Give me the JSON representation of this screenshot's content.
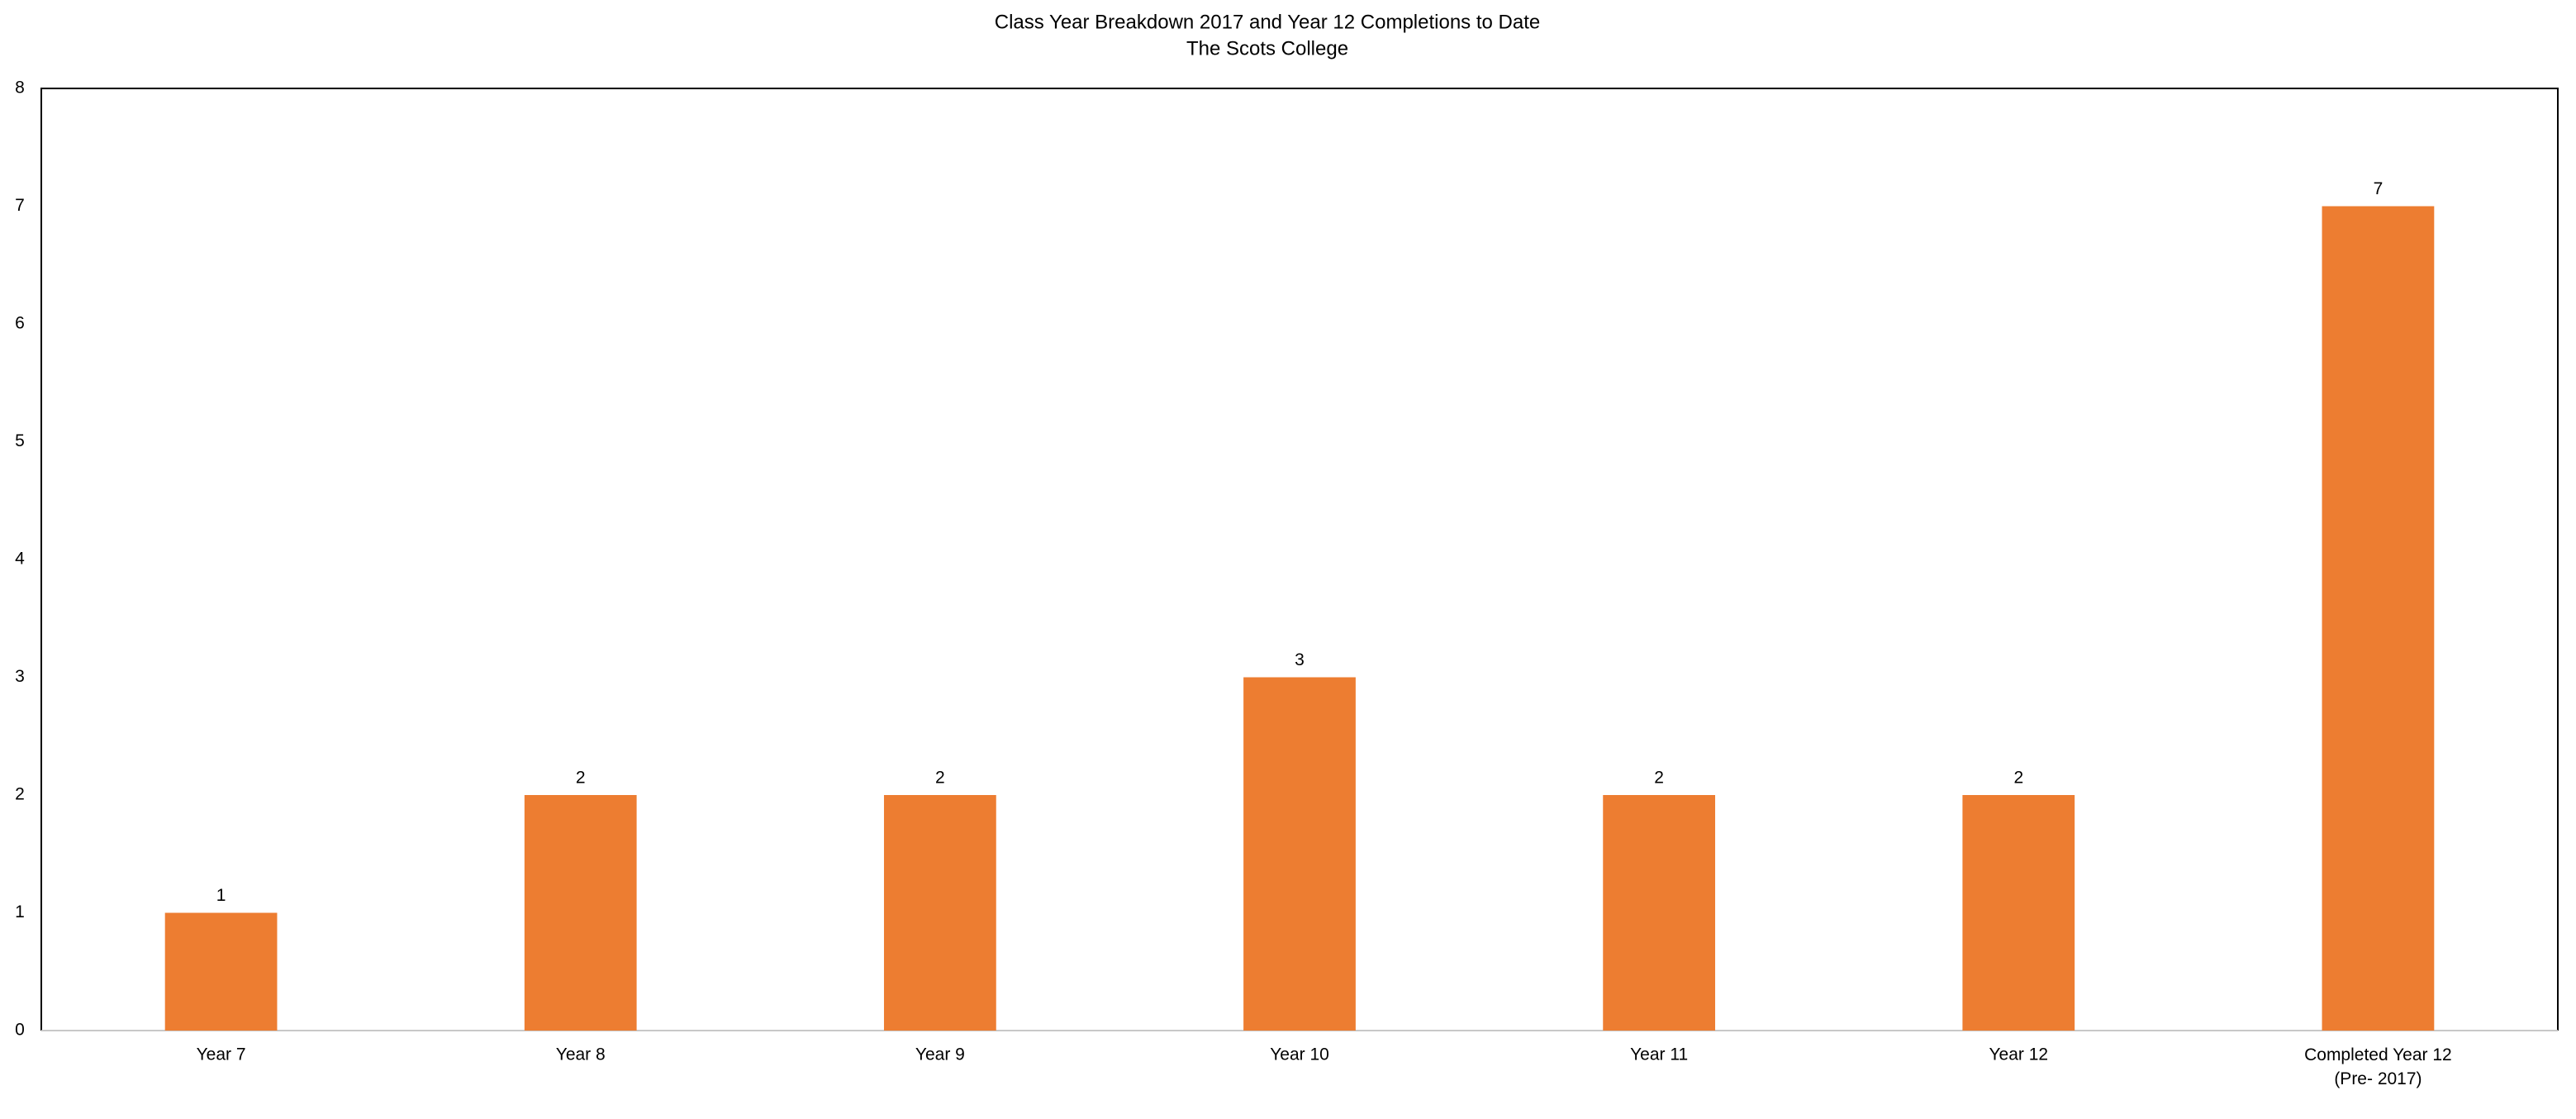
{
  "chart_data": {
    "type": "bar",
    "title": "Class Year Breakdown 2017 and Year 12 Completions to Date",
    "subtitle": "The Scots College",
    "categories": [
      "Year 7",
      "Year 8",
      "Year 9",
      "Year 10",
      "Year 11",
      "Year 12",
      "Completed Year 12\n(Pre- 2017)"
    ],
    "values": [
      1,
      2,
      2,
      3,
      2,
      2,
      7
    ],
    "color": "#ed7d31",
    "ylim": [
      0,
      8
    ],
    "yticks": [
      0,
      1,
      2,
      3,
      4,
      5,
      6,
      7,
      8
    ],
    "grid": false
  }
}
